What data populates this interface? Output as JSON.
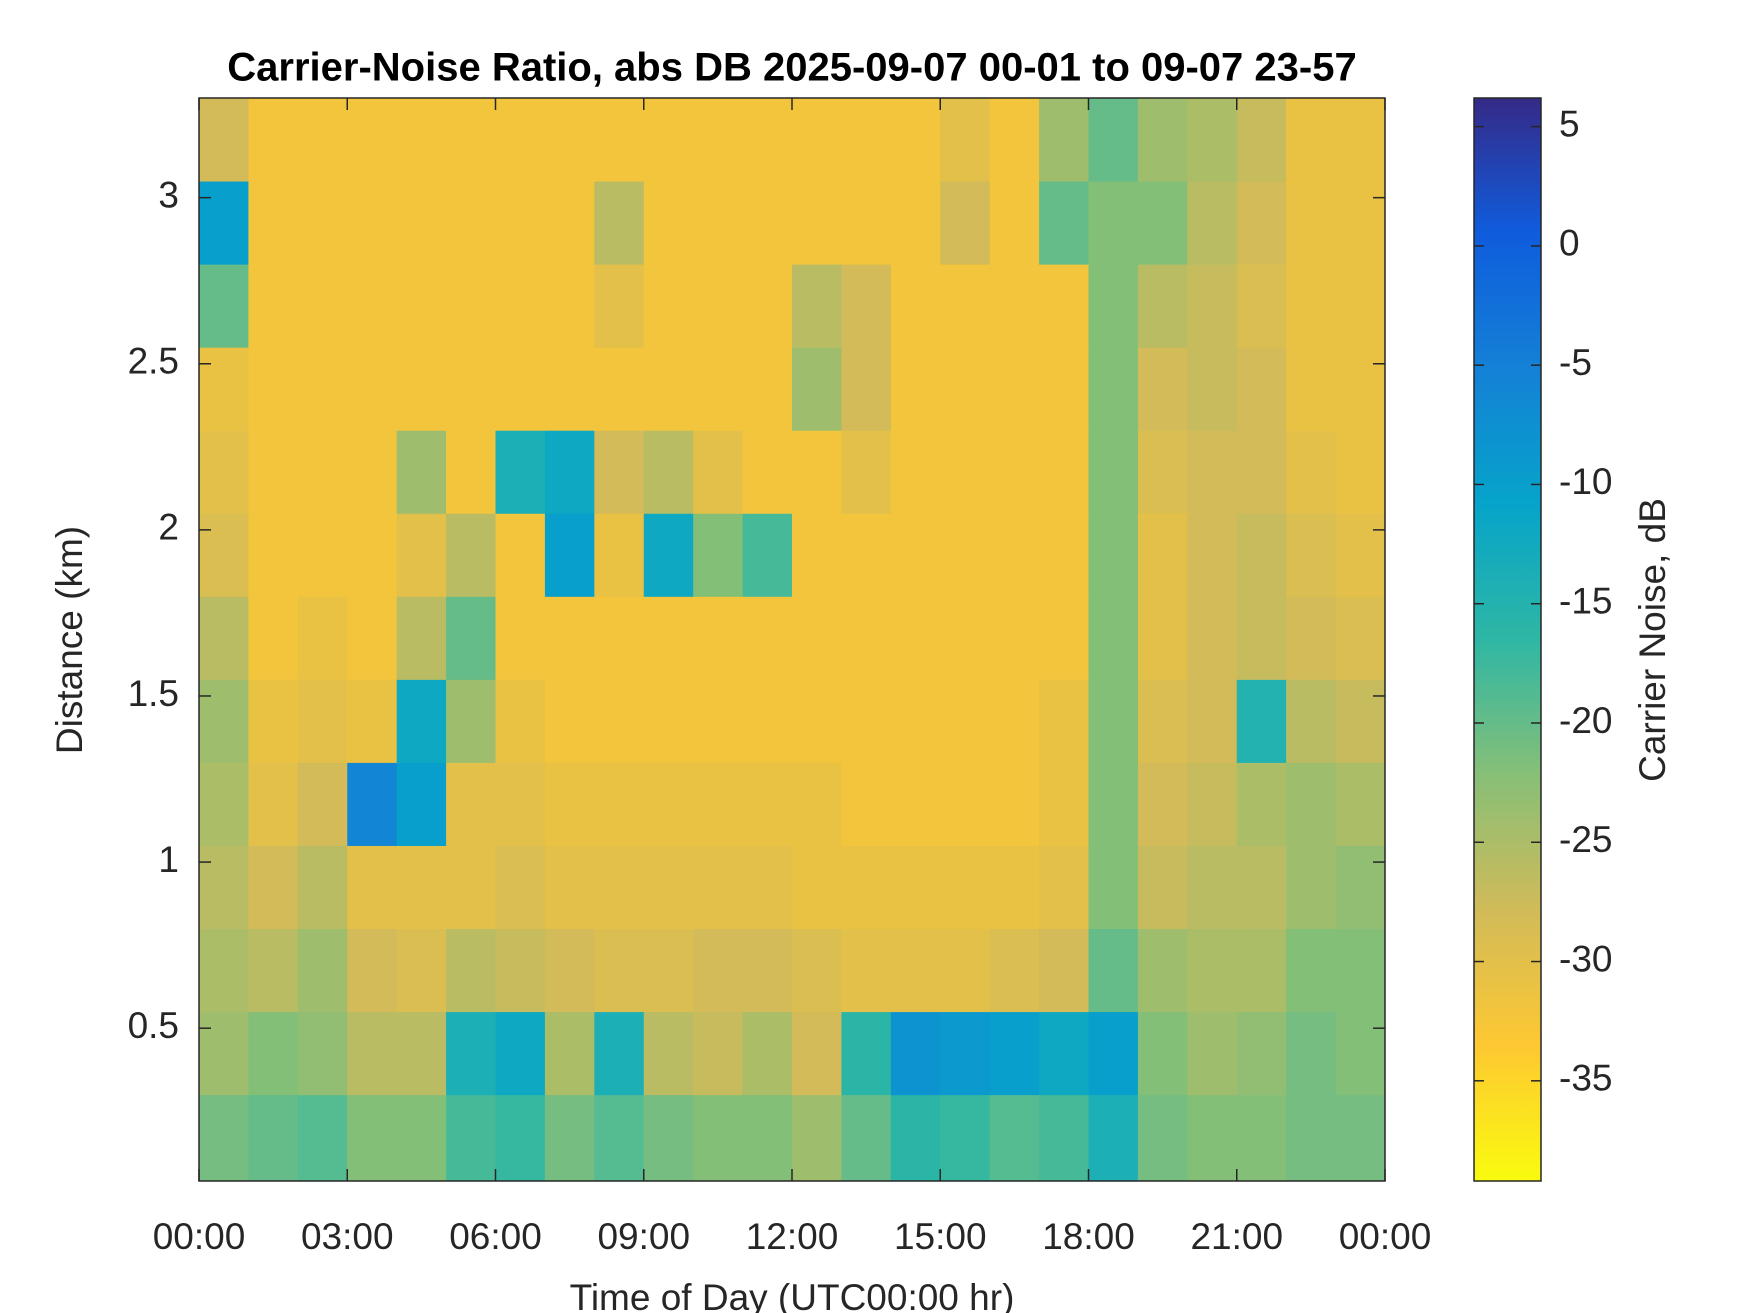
{
  "chart_data": {
    "type": "heatmap",
    "title": "Carrier-Noise Ratio, abs DB 2025-09-07 00-01 to 09-07 23-57",
    "x_label": "Time of Day (UTC00:00 hr)",
    "y_label": "Distance (km)",
    "colorbar_label": "Carrier Noise, dB",
    "colormap": "parula",
    "reverse_colormap": true,
    "xlim": [
      0,
      24
    ],
    "xticks": [
      {
        "value": 0,
        "label": "00:00"
      },
      {
        "value": 3,
        "label": "03:00"
      },
      {
        "value": 6,
        "label": "06:00"
      },
      {
        "value": 9,
        "label": "09:00"
      },
      {
        "value": 12,
        "label": "12:00"
      },
      {
        "value": 15,
        "label": "15:00"
      },
      {
        "value": 18,
        "label": "18:00"
      },
      {
        "value": 21,
        "label": "21:00"
      },
      {
        "value": 24,
        "label": "00:00"
      }
    ],
    "ylim": [
      0.04,
      3.3
    ],
    "yticks": [
      0.5,
      1,
      1.5,
      2,
      2.5,
      3
    ],
    "clim": [
      -39.2,
      6.2
    ],
    "cticks": [
      -35,
      -30,
      -25,
      -20,
      -15,
      -10,
      -5,
      0,
      5
    ],
    "x_bins": [
      0,
      1,
      2,
      3,
      4,
      5,
      6,
      7,
      8,
      9,
      10,
      11,
      12,
      13,
      14,
      15,
      16,
      17,
      18,
      19,
      20,
      21,
      22,
      23,
      24
    ],
    "y_bins": [
      0.04,
      0.3,
      0.55,
      0.8,
      1.05,
      1.3,
      1.55,
      1.8,
      2.05,
      2.3,
      2.55,
      2.8,
      3.05,
      3.3
    ],
    "z": [
      [
        -21,
        -20,
        -19,
        -22,
        -22,
        -18,
        -17,
        -21,
        -19,
        -21,
        -22,
        -22,
        -24,
        -20,
        -16,
        -17,
        -19,
        -18,
        -14,
        -21,
        -22,
        -22,
        -21,
        -21
      ],
      [
        -24,
        -22,
        -23,
        -26,
        -26,
        -14,
        -12,
        -25,
        -14,
        -26,
        -27,
        -25,
        -28,
        -16,
        -8,
        -9,
        -10,
        -12,
        -10,
        -22,
        -24,
        -23,
        -21,
        -22
      ],
      [
        -25,
        -26,
        -24,
        -28,
        -29,
        -26,
        -27,
        -28,
        -29,
        -29,
        -28,
        -28,
        -29,
        -30,
        -30,
        -30,
        -29,
        -28,
        -20,
        -24,
        -25,
        -25,
        -22,
        -22
      ],
      [
        -26,
        -28,
        -26,
        -30,
        -30,
        -30,
        -29,
        -30,
        -30,
        -30,
        -30,
        -30,
        -31,
        -31,
        -31,
        -31,
        -31,
        -30,
        -22,
        -27,
        -26,
        -26,
        -24,
        -23
      ],
      [
        -25,
        -30,
        -28,
        -6,
        -10,
        -30,
        -30,
        -31,
        -31,
        -31,
        -31,
        -31,
        -31,
        -32,
        -32,
        -32,
        -32,
        -31,
        -22,
        -28,
        -27,
        -25,
        -24,
        -25
      ],
      [
        -24,
        -31,
        -30,
        -31,
        -12,
        -24,
        -31,
        -32,
        -32,
        -32,
        -32,
        -32,
        -32,
        -32,
        -32,
        -32,
        -32,
        -31,
        -22,
        -29,
        -28,
        -15,
        -26,
        -27
      ],
      [
        -26,
        -32,
        -31,
        -32,
        -26,
        -20,
        -32,
        -32,
        -32,
        -32,
        -32,
        -32,
        -32,
        -32,
        -32,
        -32,
        -32,
        -32,
        -22,
        -30,
        -28,
        -27,
        -28,
        -29
      ],
      [
        -29,
        -32,
        -32,
        -32,
        -30,
        -26,
        -32,
        -10,
        -31,
        -12,
        -22,
        -18,
        -32,
        -32,
        -32,
        -32,
        -32,
        -32,
        -22,
        -30,
        -28,
        -27,
        -29,
        -30
      ],
      [
        -30,
        -32,
        -32,
        -32,
        -24,
        -32,
        -14,
        -12,
        -28,
        -26,
        -30,
        -32,
        -32,
        -30,
        -32,
        -32,
        -32,
        -32,
        -22,
        -29,
        -28,
        -28,
        -30,
        -31
      ],
      [
        -31,
        -32,
        -32,
        -32,
        -32,
        -32,
        -32,
        -32,
        -32,
        -32,
        -32,
        -32,
        -24,
        -28,
        -32,
        -32,
        -32,
        -32,
        -22,
        -28,
        -27,
        -28,
        -31,
        -31
      ],
      [
        -20,
        -32,
        -32,
        -32,
        -32,
        -32,
        -32,
        -32,
        -30,
        -32,
        -32,
        -32,
        -26,
        -28,
        -32,
        -32,
        -32,
        -32,
        -22,
        -26,
        -27,
        -29,
        -31,
        -31
      ],
      [
        -10,
        -32,
        -32,
        -32,
        -32,
        -32,
        -32,
        -32,
        -26,
        -32,
        -32,
        -32,
        -32,
        -32,
        -32,
        -28,
        -32,
        -20,
        -22,
        -22,
        -26,
        -28,
        -31,
        -31
      ],
      [
        -28,
        -32,
        -32,
        -32,
        -32,
        -32,
        -32,
        -32,
        -32,
        -32,
        -32,
        -32,
        -32,
        -32,
        -32,
        -30,
        -32,
        -24,
        -20,
        -24,
        -25,
        -27,
        -31,
        -31
      ]
    ]
  }
}
